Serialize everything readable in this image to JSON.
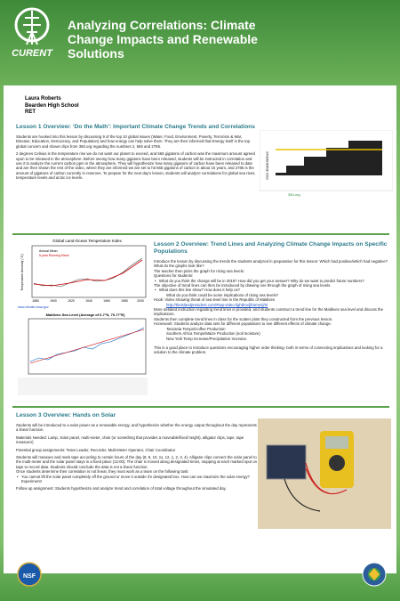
{
  "header": {
    "title": "Analyzing Correlations: Climate Change Impacts and Renewable Solutions",
    "logo_text": "CURENT"
  },
  "author": {
    "name": "Laura Roberts",
    "school": "Bearden High School",
    "program": "RET"
  },
  "lesson1": {
    "heading": "Lesson 1 Overview: ‘Do the Math’: Important Climate Change Trends and Correlations",
    "paragraphs": [
      "Students are hooked into this lesson by discussing 9 of the top 10 global issues (Water, Food, Environment, Poverty, Terrorism & War, Disease, Education, Democracy, and Population) and how energy can help solve them. They are then informed that Energy itself is the top global concern and shown clips from 350.org regarding the numbers 2, 565 and 2785.",
      "2 degrees Celsius is the temperature rise we do not want our planet to exceed, and 565 gigatons of carbon was the maximum amount agreed upon to be released in the atmosphere. Before seeing how many gigatons have been released, students will be instructed in correlation and use it to analyze the current carbon ppm in the atmosphere. They will hypothesize how many gigatons of carbon have been released to date and are then shown the rest of the video, where they are informed we are set to hit 565 gigatons of carbon in about 15 years, and 2785 is the amount of gigatons of carbon currently in reserves. To prepare for the next day's lesson, students will analyze correlations for global sea rises, temperature levels and arctic ice levels."
    ],
    "image_label": "CO2 EMISSIONS",
    "image_caption": "350.org"
  },
  "graphs": {
    "temp_title": "Global Land-Ocean Temperature Index",
    "legend": [
      "Annual Mean",
      "5-year Running Mean"
    ],
    "y_label": "Temperature Anomaly (°C)",
    "years": [
      "1880",
      "1900",
      "1920",
      "1940",
      "1960",
      "1980",
      "2000"
    ],
    "temp_source": "www.climate.nasa.gov",
    "sea_title": "Maldives Sea Level (Average of 0-7°N, 70-77°E)"
  },
  "lesson2": {
    "heading": "Lesson 2 Overview: Trend Lines and Analyzing Climate Change Impacts on Specific Populations",
    "lines": [
      "Introduce the lesson by discussing the trends the students analyzed in preparation for this lesson: Which had positive/which had negative? What do the graphs look like?",
      "The teacher then picks the graph for rising sea levels:",
      "Questions for students:",
      "What do you think the change will be in 2019? How did you get your answer? Why do we want to predict future numbers?",
      "The objective of trend lines can then be introduced by drawing one through the graph of rising sea levels.",
      "What does this line show? How does it help us?",
      "What do you think could be some implications of rising sea levels?",
      "Hook: Video showing threat of sea level rise in the Republic of Maldives",
      "http://theislandpresident.com/#iwp-video-lightbox[iframes]/0/",
      "More detailed instruction regarding trend lines is provided, and students construct a trend line for the Maldives sea level and discuss the implications.",
      "Students then complete trend lines in class for the scatter plots they constructed from the previous lesson.",
      "Homework: Students analyze data sets for different populations to see different effects of climate change.",
      "Tanzania Temps/Coffee Production",
      "Southern Africa Temps/Maize Production (soil moisture)",
      "New York Temp Increase/Precipitation Increase.",
      "This is a good place to introduce questions encouraging higher order thinking- both in terms of connecting implications and looking for a solution to the climate problem."
    ]
  },
  "lesson3": {
    "heading": "Lesson 3 Overview: Hands on Solar",
    "lines": [
      "Students will be introduced to a solar power as a renewable energy, and hypothesize whether the energy output throughout the day represents a linear function.",
      "Materials Needed: Lamp, Solar panel, multi-meter, chair (or something that provides a moveable/fixed height), alligator clips, tape, tape measurer)",
      "Potential group assignments: Team Leader, Recorder, Multi-Meter Operator, Chair Coordinator",
      "Students will measure and mark tape according to certain hours of the day (8, 9, 10, 11, 12, 1, 2, 3, 4). Alligator clips connect the solar panel to the multi-meter and the solar panel stays in a fixed place (12:00). The chair is moved along designated times, stopping at each marked spot on tape to record data. Students should conclude the data is not a linear function.",
      "Once students determine their correlation is not linear, they must work as a team on the following task:",
      "You cannot lift the solar panel completely off the ground or move it outside it's designated box. How can we maximize the solar energy? Experiment!",
      "Follow up assignment: Students hypothesize and analyze trend and correlation of total voltage throughout the simulated day."
    ]
  },
  "footer": {
    "nsf": "NSF"
  }
}
